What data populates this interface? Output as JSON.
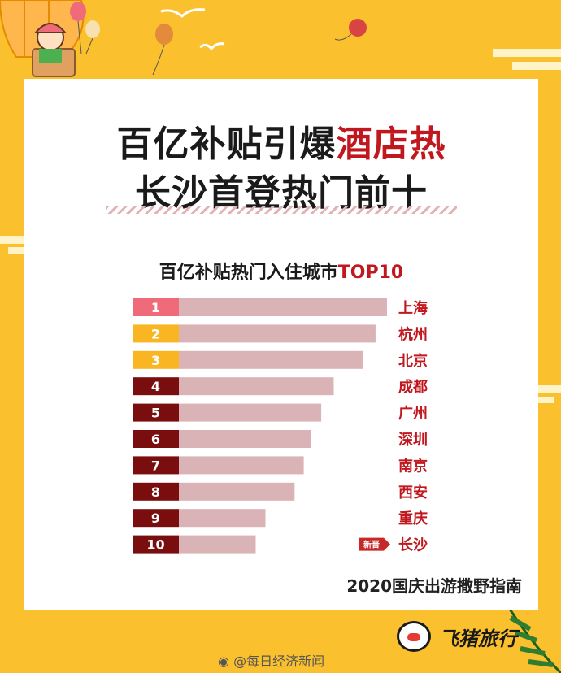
{
  "headline": {
    "line1_black": "百亿补贴引爆",
    "line1_red": "酒店热",
    "line2": "长沙首登热门前十"
  },
  "chart_title": {
    "main": "百亿补贴热门入住城市",
    "accent": "TOP10"
  },
  "chart_data": {
    "type": "bar",
    "orientation": "horizontal",
    "title": "百亿补贴热门入住城市TOP10",
    "categories": [
      "上海",
      "杭州",
      "北京",
      "成都",
      "广州",
      "深圳",
      "南京",
      "西安",
      "重庆",
      "长沙"
    ],
    "ranks": [
      "1",
      "2",
      "3",
      "4",
      "5",
      "6",
      "7",
      "8",
      "9",
      "10"
    ],
    "values": [
      100,
      94.5,
      88.6,
      74.4,
      68.4,
      63.3,
      60,
      55.6,
      41.6,
      36.9
    ],
    "value_scale_note": "",
    "rank_colors": [
      "#F06B7A",
      "#F9B522",
      "#F9B522",
      "#7A0E0E",
      "#7A0E0E",
      "#7A0E0E",
      "#7A0E0E",
      "#7A0E0E",
      "#7A0E0E",
      "#7A0E0E"
    ],
    "bar_color": "#D9B3B5",
    "new_badge": {
      "category": "长沙",
      "text": "新晋",
      "color": "#C62828"
    }
  },
  "footer": {
    "note": "2020国庆出游撒野指南",
    "brand": "飞猪旅行",
    "watermark": "@每日经济新闻"
  },
  "colors": {
    "background": "#FBC02D",
    "card": "#FFFFFF",
    "title_red": "#C0181E"
  },
  "icons": {
    "brand_logo": "pig-face-icon",
    "watermark_logo": "weibo-icon"
  }
}
